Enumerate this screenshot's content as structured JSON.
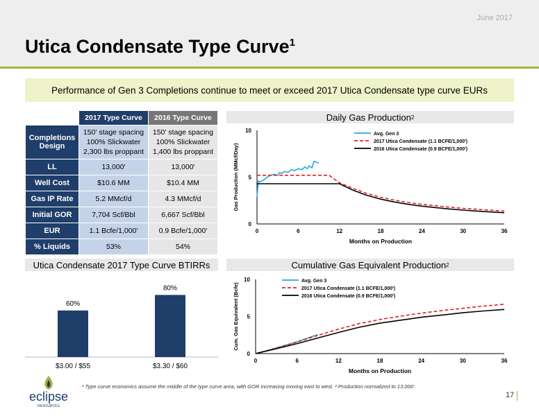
{
  "header": {
    "date": "June 2017",
    "title": "Utica Condensate Type Curve",
    "title_sup": "1"
  },
  "banner": "Performance of Gen 3 Completions continue to meet or exceed 2017 Utica Condensate type curve EURs",
  "table": {
    "col_headers": [
      "2017 Type Curve",
      "2016 Type Curve"
    ],
    "rows": [
      {
        "label": "Completions Design",
        "v2017": [
          "150' stage spacing",
          "100% Slickwater",
          "2,300 lbs proppant"
        ],
        "v2016": [
          "150' stage spacing",
          "100% Slickwater",
          "1,400 lbs proppant"
        ]
      },
      {
        "label": "LL",
        "v2017": "13,000'",
        "v2016": "13,000'"
      },
      {
        "label": "Well Cost",
        "v2017": "$10.6 MM",
        "v2016": "$10.4 MM"
      },
      {
        "label": "Gas IP Rate",
        "v2017": "5.2 MMcf/d",
        "v2016": "4.3 MMcf/d"
      },
      {
        "label": "Initial GOR",
        "v2017": "7,704 Scf/Bbl",
        "v2016": "6,667 Scf/Bbl"
      },
      {
        "label": "EUR",
        "v2017": "1.1 Bcfe/1,000'",
        "v2016": "0.9 Bcfe/1,000'"
      },
      {
        "label": "% Liquids",
        "v2017": "53%",
        "v2016": "54%"
      }
    ]
  },
  "section_titles": {
    "daily": "Daily Gas Production",
    "daily_sup": "2",
    "irr": "Utica Condensate 2017 Type Curve BTIRRs",
    "cumulative": "Cumulative Gas Equivalent Production",
    "cumulative_sup": "2"
  },
  "chart_data": [
    {
      "type": "line",
      "xlabel": "Months on Production",
      "ylabel": "Gas Production (MMcf/Day)",
      "xlim": [
        0,
        36
      ],
      "ylim": [
        0,
        10
      ],
      "xticks": [
        0,
        6,
        12,
        18,
        24,
        30,
        36
      ],
      "yticks": [
        0,
        5,
        10
      ],
      "legend_position": "top-right",
      "series": [
        {
          "name": "Avg. Gen 3",
          "color": "#2aa7d9",
          "style": "solid",
          "x": [
            0,
            0.2,
            0.4,
            1,
            1.5,
            2,
            2.5,
            3,
            3.3,
            3.6,
            4,
            4.5,
            5,
            5.5,
            6,
            6.5,
            7,
            7.3,
            7.6,
            8,
            8.3,
            8.6,
            9
          ],
          "y": [
            2.9,
            4.6,
            4.5,
            4.7,
            5.0,
            5.2,
            5.3,
            5.2,
            5.5,
            5.4,
            5.6,
            5.5,
            5.8,
            5.7,
            5.9,
            5.8,
            6.1,
            5.9,
            6.2,
            6.0,
            6.7,
            6.6,
            6.5
          ]
        },
        {
          "name": "2017 Utica Condensate (1.1 BCFE/1,000')",
          "color": "#e21f26",
          "style": "dashed",
          "x": [
            0,
            10.5,
            12,
            14,
            16,
            18,
            20,
            22,
            24,
            26,
            28,
            30,
            32,
            34,
            36
          ],
          "y": [
            5.2,
            5.2,
            4.4,
            3.8,
            3.25,
            2.85,
            2.55,
            2.3,
            2.1,
            1.95,
            1.8,
            1.67,
            1.57,
            1.47,
            1.38
          ]
        },
        {
          "name": "2016 Utica Condensate (0.9 BCFE/1,000')",
          "color": "#000000",
          "style": "solid",
          "x": [
            0,
            12,
            14,
            16,
            18,
            20,
            22,
            24,
            26,
            28,
            30,
            32,
            34,
            36
          ],
          "y": [
            4.3,
            4.3,
            3.6,
            3.05,
            2.65,
            2.35,
            2.1,
            1.9,
            1.75,
            1.6,
            1.48,
            1.38,
            1.28,
            1.2
          ]
        }
      ]
    },
    {
      "type": "bar",
      "title": "Utica Condensate 2017 Type Curve BTIRRs",
      "categories": [
        "$3.00 / $55",
        "$3.30 / $60"
      ],
      "values": [
        60,
        80
      ],
      "value_labels": [
        "60%",
        "80%"
      ],
      "ylim": [
        0,
        100
      ],
      "color": "#1f3e6a"
    },
    {
      "type": "line",
      "xlabel": "Months on Production",
      "ylabel": "Cum. Gas Equivalent (Bcfe)",
      "xlim": [
        0,
        36
      ],
      "ylim": [
        0,
        10
      ],
      "xticks": [
        0,
        6,
        12,
        18,
        24,
        30,
        36
      ],
      "yticks": [
        0,
        5,
        10
      ],
      "legend_position": "top-left",
      "series": [
        {
          "name": "Avg. Gen 3",
          "color": "#2aa7d9",
          "style": "solid",
          "x": [
            0,
            2,
            4,
            6,
            8,
            9
          ],
          "y": [
            0,
            0.5,
            1.05,
            1.6,
            2.25,
            2.55
          ]
        },
        {
          "name": "2017 Utica Condensate (1.1 BCFE/1,000')",
          "color": "#e21f26",
          "style": "dashed",
          "x": [
            0,
            3,
            6,
            9,
            12,
            15,
            18,
            21,
            24,
            27,
            30,
            33,
            36
          ],
          "y": [
            0,
            0.75,
            1.55,
            2.45,
            3.3,
            4.05,
            4.6,
            5.05,
            5.45,
            5.8,
            6.1,
            6.4,
            6.65
          ]
        },
        {
          "name": "2016 Utica Condensate (0.9 BCFE/1,000')",
          "color": "#000000",
          "style": "solid",
          "x": [
            0,
            3,
            6,
            9,
            12,
            15,
            18,
            21,
            24,
            27,
            30,
            33,
            36
          ],
          "y": [
            0,
            0.65,
            1.35,
            2.1,
            2.85,
            3.55,
            4.1,
            4.5,
            4.9,
            5.2,
            5.5,
            5.75,
            5.95
          ]
        }
      ]
    }
  ],
  "footnote": "¹ Type curve economics assume the middle of the type curve area, with GOR increasing moving east to west. ² Production normalized to 13,000'.",
  "page_number": "17",
  "logo": {
    "text": "eclipse",
    "sub": "RESOURCES"
  }
}
